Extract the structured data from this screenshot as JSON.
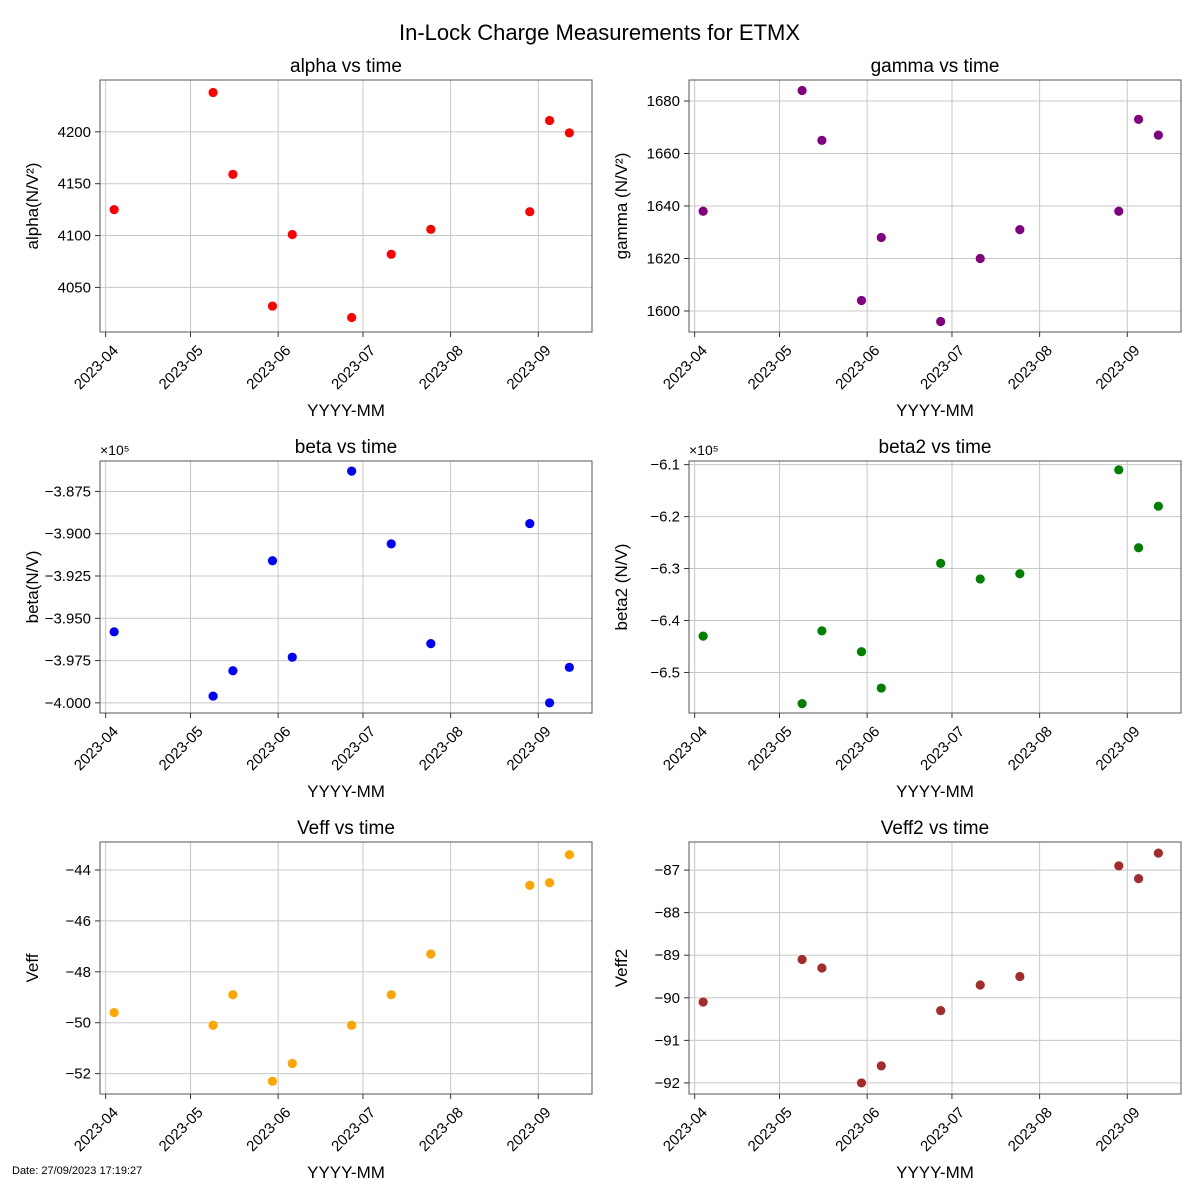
{
  "figure": {
    "title": "In-Lock Charge Measurements for ETMX",
    "footer": "Date: 27/09/2023 17:19:27"
  },
  "chart_data": [
    {
      "type": "scatter",
      "title": "alpha vs time",
      "xlabel": "YYYY-MM",
      "ylabel": "alpha(N/V²)",
      "color": "#ff0000",
      "x": [
        "2023-04-04",
        "2023-05-09",
        "2023-05-16",
        "2023-05-30",
        "2023-06-06",
        "2023-06-27",
        "2023-07-11",
        "2023-07-25",
        "2023-08-29",
        "2023-09-05",
        "2023-09-12"
      ],
      "y": [
        4125,
        4238,
        4159,
        4032,
        4101,
        4021,
        4082,
        4106,
        4123,
        4211,
        4199
      ],
      "xlim": [
        "2023-03-30",
        "2023-09-20"
      ],
      "ylim": [
        4007,
        4250
      ],
      "xticks": [
        "2023-04",
        "2023-05",
        "2023-06",
        "2023-07",
        "2023-08",
        "2023-09"
      ],
      "yticks": [
        4050,
        4100,
        4150,
        4200
      ],
      "ytick_labels": [
        "4050",
        "4100",
        "4150",
        "4200"
      ],
      "offset_text": "",
      "grid": true
    },
    {
      "type": "scatter",
      "title": "gamma vs time",
      "xlabel": "YYYY-MM",
      "ylabel": "gamma (N/V²)",
      "color": "#800080",
      "x": [
        "2023-04-04",
        "2023-05-09",
        "2023-05-16",
        "2023-05-30",
        "2023-06-06",
        "2023-06-27",
        "2023-07-11",
        "2023-07-25",
        "2023-08-29",
        "2023-09-05",
        "2023-09-12"
      ],
      "y": [
        1638,
        1684,
        1665,
        1604,
        1628,
        1596,
        1620,
        1631,
        1638,
        1673,
        1667
      ],
      "xlim": [
        "2023-03-30",
        "2023-09-20"
      ],
      "ylim": [
        1592,
        1688
      ],
      "xticks": [
        "2023-04",
        "2023-05",
        "2023-06",
        "2023-07",
        "2023-08",
        "2023-09"
      ],
      "yticks": [
        1600,
        1620,
        1640,
        1660,
        1680
      ],
      "ytick_labels": [
        "1600",
        "1620",
        "1640",
        "1660",
        "1680"
      ],
      "offset_text": "",
      "grid": true
    },
    {
      "type": "scatter",
      "title": "beta vs time",
      "xlabel": "YYYY-MM",
      "ylabel": "beta(N/V)",
      "color": "#0000ff",
      "x": [
        "2023-04-04",
        "2023-05-09",
        "2023-05-16",
        "2023-05-30",
        "2023-06-06",
        "2023-06-27",
        "2023-07-11",
        "2023-07-25",
        "2023-08-29",
        "2023-09-05",
        "2023-09-12"
      ],
      "y": [
        -3.958,
        -3.996,
        -3.981,
        -3.916,
        -3.973,
        -3.863,
        -3.906,
        -3.965,
        -3.894,
        -4.0,
        -3.979
      ],
      "xlim": [
        "2023-03-30",
        "2023-09-20"
      ],
      "ylim": [
        -4.006,
        -3.857
      ],
      "xticks": [
        "2023-04",
        "2023-05",
        "2023-06",
        "2023-07",
        "2023-08",
        "2023-09"
      ],
      "yticks": [
        -4.0,
        -3.975,
        -3.95,
        -3.925,
        -3.9,
        -3.875
      ],
      "ytick_labels": [
        "−4.000",
        "−3.975",
        "−3.950",
        "−3.925",
        "−3.900",
        "−3.875"
      ],
      "offset_text": "×10⁵",
      "grid": true
    },
    {
      "type": "scatter",
      "title": "beta2 vs time",
      "xlabel": "YYYY-MM",
      "ylabel": "beta2 (N/V)",
      "color": "#008000",
      "x": [
        "2023-04-04",
        "2023-05-09",
        "2023-05-16",
        "2023-05-30",
        "2023-06-06",
        "2023-06-27",
        "2023-07-11",
        "2023-07-25",
        "2023-08-29",
        "2023-09-05",
        "2023-09-12"
      ],
      "y": [
        -6.43,
        -6.56,
        -6.42,
        -6.46,
        -6.53,
        -6.29,
        -6.32,
        -6.31,
        -6.11,
        -6.26,
        -6.18
      ],
      "xlim": [
        "2023-03-30",
        "2023-09-20"
      ],
      "ylim": [
        -6.578,
        -6.093
      ],
      "xticks": [
        "2023-04",
        "2023-05",
        "2023-06",
        "2023-07",
        "2023-08",
        "2023-09"
      ],
      "yticks": [
        -6.5,
        -6.4,
        -6.3,
        -6.2,
        -6.1
      ],
      "ytick_labels": [
        "−6.5",
        "−6.4",
        "−6.3",
        "−6.2",
        "−6.1"
      ],
      "offset_text": "×10⁵",
      "grid": true
    },
    {
      "type": "scatter",
      "title": "Veff vs time",
      "xlabel": "YYYY-MM",
      "ylabel": "Veff",
      "color": "#ffa500",
      "x": [
        "2023-04-04",
        "2023-05-09",
        "2023-05-16",
        "2023-05-30",
        "2023-06-06",
        "2023-06-27",
        "2023-07-11",
        "2023-07-25",
        "2023-08-29",
        "2023-09-05",
        "2023-09-12"
      ],
      "y": [
        -49.6,
        -50.1,
        -48.9,
        -52.3,
        -51.6,
        -50.1,
        -48.9,
        -47.3,
        -44.6,
        -44.5,
        -43.4
      ],
      "xlim": [
        "2023-03-30",
        "2023-09-20"
      ],
      "ylim": [
        -52.8,
        -42.9
      ],
      "xticks": [
        "2023-04",
        "2023-05",
        "2023-06",
        "2023-07",
        "2023-08",
        "2023-09"
      ],
      "yticks": [
        -52,
        -50,
        -48,
        -46,
        -44
      ],
      "ytick_labels": [
        "−52",
        "−50",
        "−48",
        "−46",
        "−44"
      ],
      "offset_text": "",
      "grid": true
    },
    {
      "type": "scatter",
      "title": "Veff2 vs time",
      "xlabel": "YYYY-MM",
      "ylabel": "Veff2",
      "color": "#a52a2a",
      "x": [
        "2023-04-04",
        "2023-05-09",
        "2023-05-16",
        "2023-05-30",
        "2023-06-06",
        "2023-06-27",
        "2023-07-11",
        "2023-07-25",
        "2023-08-29",
        "2023-09-05",
        "2023-09-12"
      ],
      "y": [
        -90.1,
        -89.1,
        -89.3,
        -92.0,
        -91.6,
        -90.3,
        -89.7,
        -89.5,
        -86.9,
        -87.2,
        -86.6
      ],
      "xlim": [
        "2023-03-30",
        "2023-09-20"
      ],
      "ylim": [
        -92.26,
        -86.34
      ],
      "xticks": [
        "2023-04",
        "2023-05",
        "2023-06",
        "2023-07",
        "2023-08",
        "2023-09"
      ],
      "yticks": [
        -92,
        -91,
        -90,
        -89,
        -88,
        -87
      ],
      "ytick_labels": [
        "−92",
        "−91",
        "−90",
        "−89",
        "−88",
        "−87"
      ],
      "offset_text": "",
      "grid": true
    }
  ]
}
